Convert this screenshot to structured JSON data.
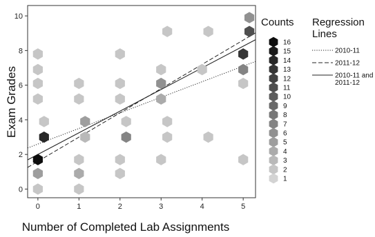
{
  "chart_data": {
    "type": "scatter",
    "xlabel": "Number of Completed Lab Assignments",
    "ylabel": "Exam Grades",
    "xlim": [
      -0.25,
      5.3
    ],
    "ylim": [
      -0.5,
      10.6
    ],
    "x_ticks": [
      "0",
      "1",
      "2",
      "3",
      "4",
      "5"
    ],
    "y_ticks": [
      "0",
      "2",
      "4",
      "6",
      "8",
      "10"
    ],
    "grid": false,
    "points": [
      {
        "x": 0,
        "y": 0.0,
        "count": 2
      },
      {
        "x": 0,
        "y": 0.9,
        "count": 5
      },
      {
        "x": 0,
        "y": 1.7,
        "count": 16
      },
      {
        "x": 0,
        "y": 5.2,
        "count": 2
      },
      {
        "x": 0,
        "y": 6.1,
        "count": 2
      },
      {
        "x": 0,
        "y": 6.9,
        "count": 2
      },
      {
        "x": 0,
        "y": 7.8,
        "count": 2
      },
      {
        "x": 0.15,
        "y": 3.9,
        "count": 2
      },
      {
        "x": 0.15,
        "y": 3.0,
        "count": 14
      },
      {
        "x": 1,
        "y": 0.0,
        "count": 2
      },
      {
        "x": 1,
        "y": 0.9,
        "count": 4
      },
      {
        "x": 1,
        "y": 1.7,
        "count": 2
      },
      {
        "x": 1,
        "y": 5.2,
        "count": 2
      },
      {
        "x": 1,
        "y": 6.1,
        "count": 2
      },
      {
        "x": 1.15,
        "y": 3.0,
        "count": 3
      },
      {
        "x": 1.15,
        "y": 3.9,
        "count": 5
      },
      {
        "x": 2,
        "y": 0.9,
        "count": 2
      },
      {
        "x": 2,
        "y": 1.7,
        "count": 2
      },
      {
        "x": 2,
        "y": 5.2,
        "count": 2
      },
      {
        "x": 2,
        "y": 6.1,
        "count": 2
      },
      {
        "x": 2,
        "y": 7.8,
        "count": 2
      },
      {
        "x": 2.15,
        "y": 3.0,
        "count": 7
      },
      {
        "x": 2.15,
        "y": 3.9,
        "count": 2
      },
      {
        "x": 3,
        "y": 1.7,
        "count": 2
      },
      {
        "x": 3,
        "y": 5.2,
        "count": 4
      },
      {
        "x": 3,
        "y": 6.1,
        "count": 6
      },
      {
        "x": 3,
        "y": 6.9,
        "count": 2
      },
      {
        "x": 3.15,
        "y": 3.0,
        "count": 2
      },
      {
        "x": 3.15,
        "y": 3.9,
        "count": 2
      },
      {
        "x": 3.15,
        "y": 9.1,
        "count": 2
      },
      {
        "x": 4,
        "y": 6.9,
        "count": 2
      },
      {
        "x": 4.15,
        "y": 3.0,
        "count": 2
      },
      {
        "x": 4.15,
        "y": 9.1,
        "count": 2
      },
      {
        "x": 5,
        "y": 1.7,
        "count": 2
      },
      {
        "x": 5,
        "y": 6.1,
        "count": 2
      },
      {
        "x": 5,
        "y": 6.9,
        "count": 7
      },
      {
        "x": 5,
        "y": 7.8,
        "count": 13
      },
      {
        "x": 5.15,
        "y": 9.1,
        "count": 11
      },
      {
        "x": 5.15,
        "y": 9.9,
        "count": 6
      }
    ],
    "regression_lines": [
      {
        "name": "2010-11",
        "style": "dotted",
        "intercept": 2.6,
        "slope": 0.9
      },
      {
        "name": "2011-12",
        "style": "dashed",
        "intercept": 1.6,
        "slope": 1.4
      },
      {
        "name": "2010-11 and 2011-12",
        "style": "solid",
        "intercept": 2.0,
        "slope": 1.25
      }
    ],
    "counts_legend": {
      "title": "Counts",
      "levels": [
        "16",
        "15",
        "14",
        "13",
        "12",
        "11",
        "10",
        "9",
        "8",
        "7",
        "6",
        "5",
        "4",
        "3",
        "2",
        "1"
      ]
    },
    "lines_legend": {
      "title_line1": "Regression",
      "title_line2": "Lines",
      "entries": [
        {
          "label": "2010-11",
          "style": "dotted"
        },
        {
          "label": "2011-12",
          "style": "dashed"
        },
        {
          "label": "2010-11 and",
          "label2": "2011-12",
          "style": "solid"
        }
      ]
    },
    "colors": {
      "darkest": "#0d0d0d",
      "lightest": "#d3d3d3",
      "axis": "#333333"
    }
  }
}
